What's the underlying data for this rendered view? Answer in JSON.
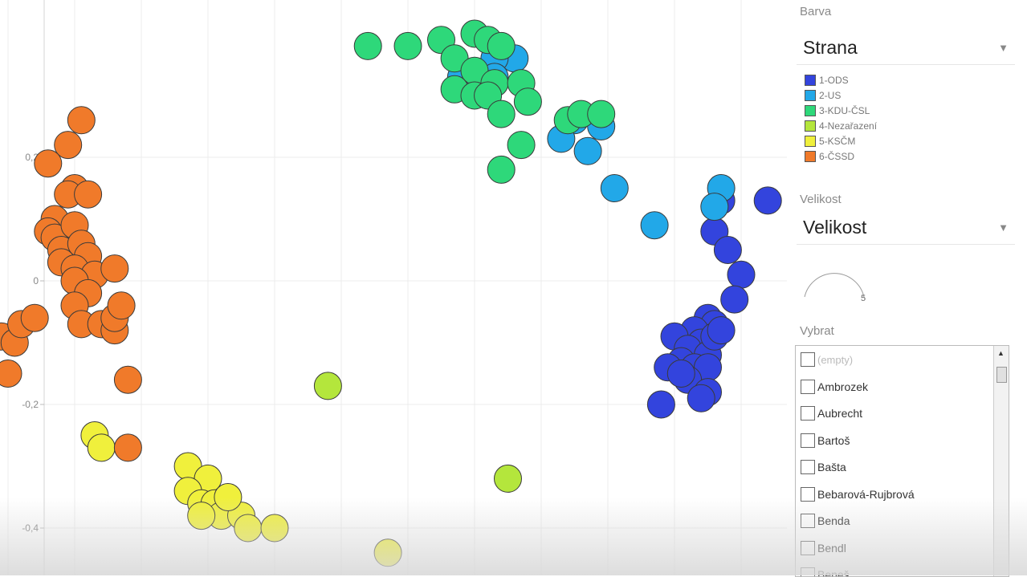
{
  "chart_data": {
    "type": "scatter",
    "title": "",
    "xlabel": "",
    "ylabel": "",
    "ylim": [
      -0.46,
      0.44
    ],
    "xlim": [
      -0.3,
      1.0
    ],
    "y_ticks": [
      "0,2",
      "0",
      "-0,2",
      "-0,4"
    ],
    "y_tick_values": [
      0.2,
      0,
      -0.2,
      -0.4
    ],
    "x_grid_values": [
      -0.2,
      -0.1,
      0.0,
      0.1,
      0.2,
      0.3,
      0.4,
      0.5,
      0.6,
      0.7,
      0.8,
      0.9
    ],
    "grid": true,
    "legend": "right",
    "series": [
      {
        "name": "1-ODS",
        "color": "#3344dd",
        "points": [
          [
            0.94,
            0.13
          ],
          [
            0.87,
            0.13
          ],
          [
            0.86,
            0.08
          ],
          [
            0.88,
            0.05
          ],
          [
            0.9,
            0.01
          ],
          [
            0.89,
            -0.03
          ],
          [
            0.85,
            -0.06
          ],
          [
            0.86,
            -0.07
          ],
          [
            0.83,
            -0.08
          ],
          [
            0.84,
            -0.1
          ],
          [
            0.8,
            -0.09
          ],
          [
            0.82,
            -0.11
          ],
          [
            0.85,
            -0.12
          ],
          [
            0.81,
            -0.13
          ],
          [
            0.79,
            -0.14
          ],
          [
            0.83,
            -0.14
          ],
          [
            0.86,
            -0.09
          ],
          [
            0.85,
            -0.14
          ],
          [
            0.82,
            -0.16
          ],
          [
            0.85,
            -0.18
          ],
          [
            0.84,
            -0.19
          ],
          [
            0.78,
            -0.2
          ],
          [
            0.81,
            -0.15
          ],
          [
            0.87,
            -0.08
          ]
        ]
      },
      {
        "name": "2-US",
        "color": "#22a8e8",
        "points": [
          [
            0.53,
            0.38
          ],
          [
            0.56,
            0.36
          ],
          [
            0.53,
            0.36
          ],
          [
            0.48,
            0.33
          ],
          [
            0.53,
            0.33
          ],
          [
            0.65,
            0.26
          ],
          [
            0.69,
            0.25
          ],
          [
            0.63,
            0.23
          ],
          [
            0.67,
            0.21
          ],
          [
            0.71,
            0.15
          ],
          [
            0.77,
            0.09
          ],
          [
            0.87,
            0.15
          ],
          [
            0.86,
            0.12
          ]
        ]
      },
      {
        "name": "3-KDU-ČSL",
        "color": "#2ed87a",
        "points": [
          [
            0.34,
            0.38
          ],
          [
            0.4,
            0.38
          ],
          [
            0.45,
            0.39
          ],
          [
            0.5,
            0.4
          ],
          [
            0.52,
            0.39
          ],
          [
            0.54,
            0.38
          ],
          [
            0.47,
            0.36
          ],
          [
            0.5,
            0.34
          ],
          [
            0.53,
            0.32
          ],
          [
            0.47,
            0.31
          ],
          [
            0.5,
            0.3
          ],
          [
            0.52,
            0.3
          ],
          [
            0.57,
            0.32
          ],
          [
            0.58,
            0.29
          ],
          [
            0.54,
            0.27
          ],
          [
            0.64,
            0.26
          ],
          [
            0.66,
            0.27
          ],
          [
            0.69,
            0.27
          ],
          [
            0.57,
            0.22
          ],
          [
            0.54,
            0.18
          ]
        ]
      },
      {
        "name": "4-Nezařazení",
        "color": "#b4e63c",
        "points": [
          [
            0.28,
            -0.17
          ],
          [
            0.55,
            -0.32
          ]
        ]
      },
      {
        "name": "5-KSČM",
        "color": "#f0f03c",
        "points": [
          [
            -0.07,
            -0.25
          ],
          [
            -0.06,
            -0.27
          ],
          [
            0.07,
            -0.3
          ],
          [
            0.1,
            -0.32
          ],
          [
            0.07,
            -0.34
          ],
          [
            0.09,
            -0.36
          ],
          [
            0.11,
            -0.36
          ],
          [
            0.12,
            -0.38
          ],
          [
            0.15,
            -0.38
          ],
          [
            0.16,
            -0.4
          ],
          [
            0.2,
            -0.4
          ],
          [
            0.13,
            -0.35
          ],
          [
            0.09,
            -0.38
          ],
          [
            0.37,
            -0.44
          ]
        ]
      },
      {
        "name": "6-ČSSD",
        "color": "#f07a2a",
        "points": [
          [
            -0.09,
            0.26
          ],
          [
            -0.11,
            0.22
          ],
          [
            -0.14,
            0.19
          ],
          [
            -0.1,
            0.15
          ],
          [
            -0.11,
            0.14
          ],
          [
            -0.08,
            0.14
          ],
          [
            -0.13,
            0.1
          ],
          [
            -0.14,
            0.08
          ],
          [
            -0.13,
            0.07
          ],
          [
            -0.1,
            0.09
          ],
          [
            -0.12,
            0.05
          ],
          [
            -0.09,
            0.06
          ],
          [
            -0.08,
            0.04
          ],
          [
            -0.12,
            0.03
          ],
          [
            -0.1,
            0.02
          ],
          [
            -0.07,
            0.01
          ],
          [
            -0.1,
            0.0
          ],
          [
            -0.08,
            -0.02
          ],
          [
            -0.04,
            0.02
          ],
          [
            -0.1,
            -0.04
          ],
          [
            -0.09,
            -0.07
          ],
          [
            -0.06,
            -0.07
          ],
          [
            -0.04,
            -0.08
          ],
          [
            -0.04,
            -0.06
          ],
          [
            -0.03,
            -0.04
          ],
          [
            -0.21,
            -0.09
          ],
          [
            -0.19,
            -0.1
          ],
          [
            -0.18,
            -0.07
          ],
          [
            -0.16,
            -0.06
          ],
          [
            -0.2,
            -0.15
          ],
          [
            -0.02,
            -0.16
          ],
          [
            -0.02,
            -0.27
          ]
        ]
      }
    ]
  },
  "panel": {
    "color_label": "Barva",
    "color_select": "Strana",
    "size_label": "Velikost",
    "size_select": "Velikost",
    "size_value": "5",
    "select_label": "Vybrat",
    "items": [
      "(empty)",
      "Ambrozek",
      "Aubrecht",
      "Bartoš",
      "Bašta",
      "Bebarová-Rujbrová",
      "Benda",
      "Bendl",
      "Beneš"
    ]
  },
  "icons": {
    "dropdown": "chevron-down-icon",
    "scroll_up": "scroll-up-icon"
  }
}
